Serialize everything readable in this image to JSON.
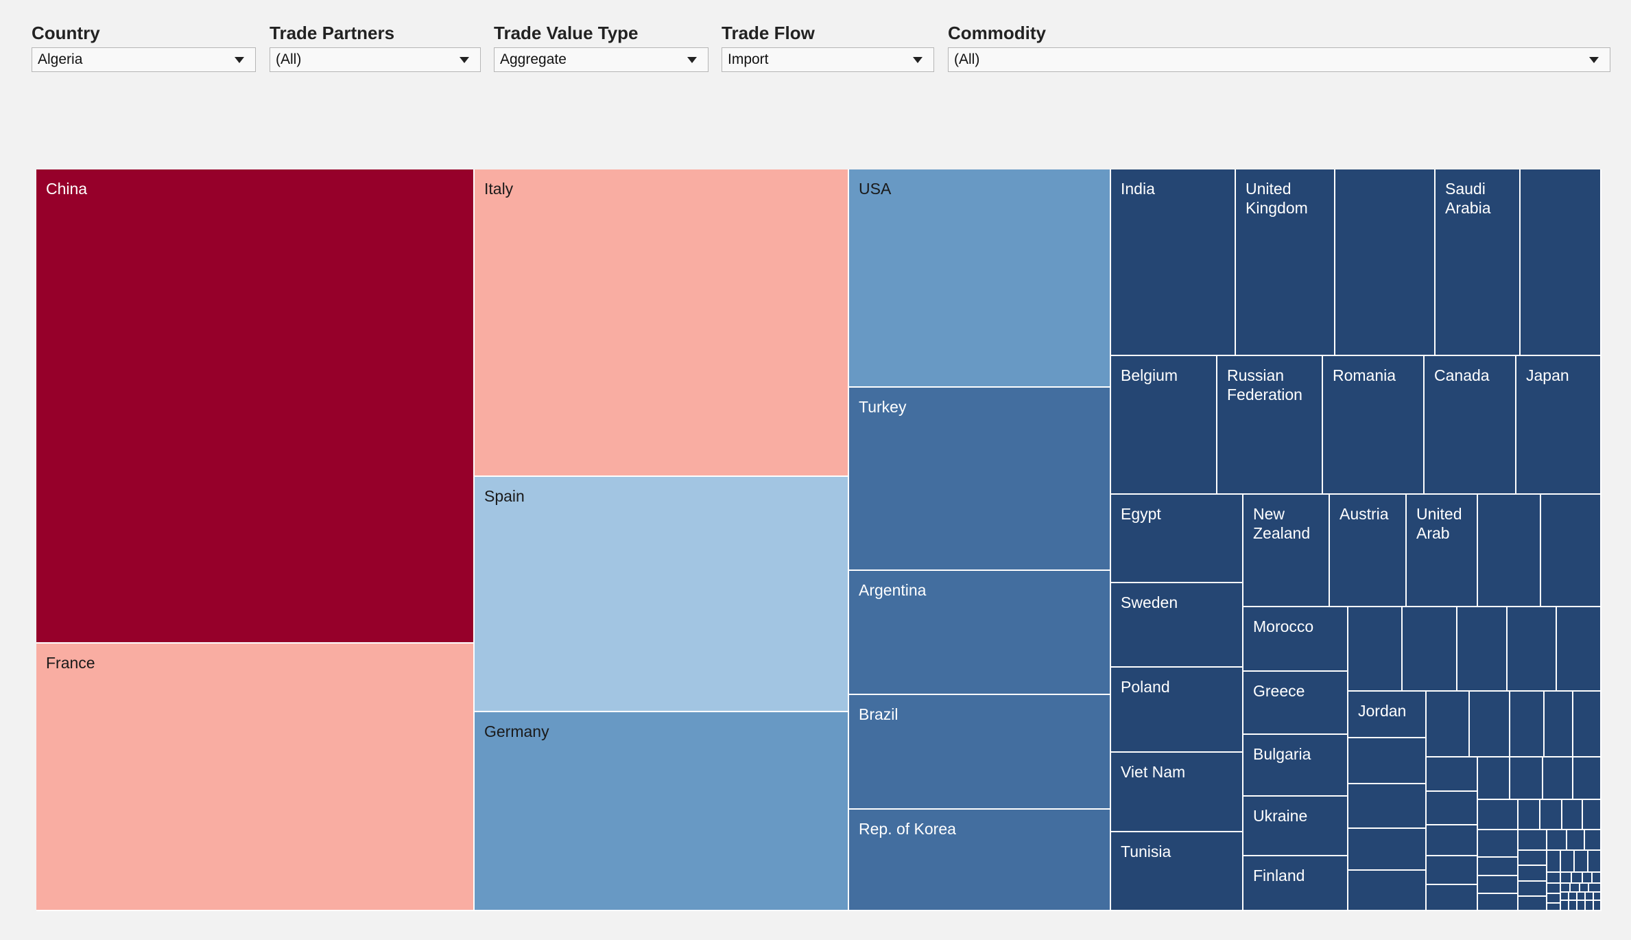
{
  "filters": [
    {
      "label": "Country",
      "value": "Algeria"
    },
    {
      "label": "Trade Partners",
      "value": "(All)"
    },
    {
      "label": "Trade Value Type",
      "value": "Aggregate"
    },
    {
      "label": "Trade Flow",
      "value": "Import"
    },
    {
      "label": "Commodity",
      "value": "(All)"
    }
  ],
  "colors": {
    "dark_red": "#96002a",
    "salmon": "#f9ada2",
    "light_blue": "#a2c5e2",
    "mid_blue": "#6899c4",
    "steel_blue": "#436e9f",
    "navy": "#254673"
  },
  "chart_data": {
    "type": "treemap",
    "title": "",
    "labeled_cells": [
      {
        "name": "China",
        "color": "dark_red"
      },
      {
        "name": "France",
        "color": "salmon"
      },
      {
        "name": "Italy",
        "color": "salmon"
      },
      {
        "name": "Spain",
        "color": "light_blue"
      },
      {
        "name": "Germany",
        "color": "mid_blue"
      },
      {
        "name": "USA",
        "color": "mid_blue"
      },
      {
        "name": "Turkey",
        "color": "steel_blue"
      },
      {
        "name": "Argentina",
        "color": "steel_blue"
      },
      {
        "name": "Brazil",
        "color": "steel_blue"
      },
      {
        "name": "Rep. of Korea",
        "color": "steel_blue"
      },
      {
        "name": "India",
        "color": "navy"
      },
      {
        "name": "United Kingdom",
        "color": "navy"
      },
      {
        "name": "Saudi Arabia",
        "color": "navy"
      },
      {
        "name": "Belgium",
        "color": "navy"
      },
      {
        "name": "Russian Federation",
        "color": "navy"
      },
      {
        "name": "Romania",
        "color": "navy"
      },
      {
        "name": "Canada",
        "color": "navy"
      },
      {
        "name": "Japan",
        "color": "navy"
      },
      {
        "name": "Egypt",
        "color": "navy"
      },
      {
        "name": "New Zealand",
        "color": "navy"
      },
      {
        "name": "Austria",
        "color": "navy"
      },
      {
        "name": "United Arab",
        "color": "navy"
      },
      {
        "name": "Sweden",
        "color": "navy"
      },
      {
        "name": "Poland",
        "color": "navy"
      },
      {
        "name": "Viet Nam",
        "color": "navy"
      },
      {
        "name": "Tunisia",
        "color": "navy"
      },
      {
        "name": "Morocco",
        "color": "navy"
      },
      {
        "name": "Greece",
        "color": "navy"
      },
      {
        "name": "Bulgaria",
        "color": "navy"
      },
      {
        "name": "Ukraine",
        "color": "navy"
      },
      {
        "name": "Finland",
        "color": "navy"
      },
      {
        "name": "Jordan",
        "color": "navy"
      }
    ]
  }
}
